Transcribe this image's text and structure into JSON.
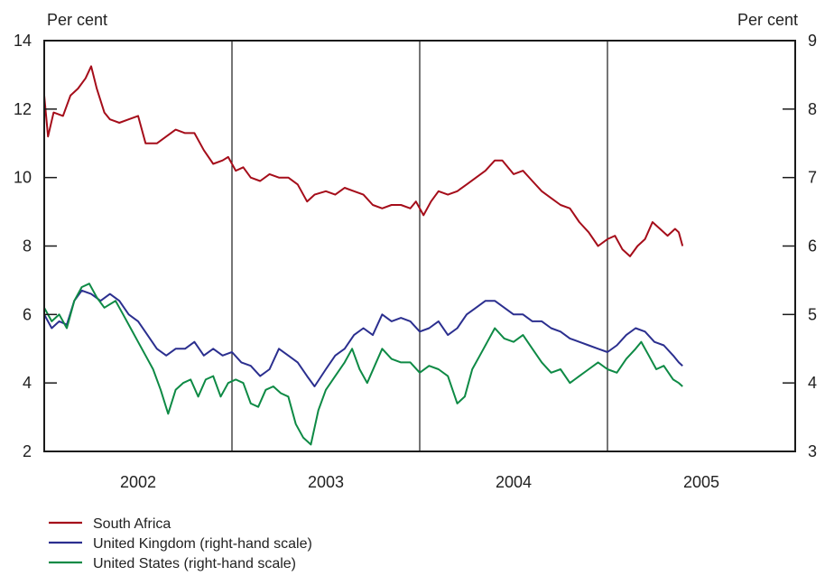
{
  "chart_data": {
    "type": "line",
    "left_unit": "Per cent",
    "right_unit": "Per cent",
    "left_ylim": [
      2,
      14
    ],
    "left_ticks": [
      2,
      4,
      6,
      8,
      10,
      12,
      14
    ],
    "right_ylim": [
      3,
      9
    ],
    "right_ticks": [
      3,
      4,
      5,
      6,
      7,
      8,
      9
    ],
    "xlim": [
      2001.5,
      2005.5
    ],
    "year_dividers": [
      2002.5,
      2003.5,
      2004.5
    ],
    "x_tick_labels": [
      {
        "x": 2002.0,
        "label": "2002"
      },
      {
        "x": 2003.0,
        "label": "2003"
      },
      {
        "x": 2004.0,
        "label": "2004"
      },
      {
        "x": 2005.0,
        "label": "2005"
      }
    ],
    "grid": false,
    "legend_position": "bottom-left",
    "series": [
      {
        "name": "South Africa",
        "axis": "left",
        "color": "#a50d1a",
        "points": [
          [
            2001.5,
            12.4
          ],
          [
            2001.52,
            11.2
          ],
          [
            2001.55,
            11.9
          ],
          [
            2001.6,
            11.8
          ],
          [
            2001.64,
            12.4
          ],
          [
            2001.68,
            12.6
          ],
          [
            2001.72,
            12.9
          ],
          [
            2001.75,
            13.25
          ],
          [
            2001.78,
            12.6
          ],
          [
            2001.82,
            11.9
          ],
          [
            2001.85,
            11.7
          ],
          [
            2001.9,
            11.6
          ],
          [
            2001.95,
            11.7
          ],
          [
            2002.0,
            11.8
          ],
          [
            2002.04,
            11.0
          ],
          [
            2002.1,
            11.0
          ],
          [
            2002.15,
            11.2
          ],
          [
            2002.2,
            11.4
          ],
          [
            2002.25,
            11.3
          ],
          [
            2002.3,
            11.3
          ],
          [
            2002.35,
            10.8
          ],
          [
            2002.4,
            10.4
          ],
          [
            2002.45,
            10.5
          ],
          [
            2002.48,
            10.6
          ],
          [
            2002.52,
            10.2
          ],
          [
            2002.56,
            10.3
          ],
          [
            2002.6,
            10.0
          ],
          [
            2002.65,
            9.9
          ],
          [
            2002.7,
            10.1
          ],
          [
            2002.75,
            10.0
          ],
          [
            2002.8,
            10.0
          ],
          [
            2002.85,
            9.8
          ],
          [
            2002.9,
            9.3
          ],
          [
            2002.94,
            9.5
          ],
          [
            2003.0,
            9.6
          ],
          [
            2003.05,
            9.5
          ],
          [
            2003.1,
            9.7
          ],
          [
            2003.15,
            9.6
          ],
          [
            2003.2,
            9.5
          ],
          [
            2003.25,
            9.2
          ],
          [
            2003.3,
            9.1
          ],
          [
            2003.35,
            9.2
          ],
          [
            2003.4,
            9.2
          ],
          [
            2003.45,
            9.1
          ],
          [
            2003.48,
            9.3
          ],
          [
            2003.52,
            8.9
          ],
          [
            2003.56,
            9.3
          ],
          [
            2003.6,
            9.6
          ],
          [
            2003.65,
            9.5
          ],
          [
            2003.7,
            9.6
          ],
          [
            2003.75,
            9.8
          ],
          [
            2003.8,
            10.0
          ],
          [
            2003.85,
            10.2
          ],
          [
            2003.9,
            10.5
          ],
          [
            2003.94,
            10.5
          ],
          [
            2004.0,
            10.1
          ],
          [
            2004.05,
            10.2
          ],
          [
            2004.1,
            9.9
          ],
          [
            2004.15,
            9.6
          ],
          [
            2004.2,
            9.4
          ],
          [
            2004.25,
            9.2
          ],
          [
            2004.3,
            9.1
          ],
          [
            2004.35,
            8.7
          ],
          [
            2004.4,
            8.4
          ],
          [
            2004.45,
            8.0
          ],
          [
            2004.5,
            8.2
          ],
          [
            2004.54,
            8.3
          ],
          [
            2004.58,
            7.9
          ],
          [
            2004.62,
            7.7
          ],
          [
            2004.66,
            8.0
          ],
          [
            2004.7,
            8.2
          ],
          [
            2004.74,
            8.7
          ],
          [
            2004.78,
            8.5
          ],
          [
            2004.82,
            8.3
          ],
          [
            2004.86,
            8.5
          ],
          [
            2004.88,
            8.4
          ],
          [
            2004.9,
            8.0
          ]
        ]
      },
      {
        "name": "United Kingdom (right-hand scale)",
        "axis": "right",
        "color": "#2b2f8f",
        "points": [
          [
            2001.5,
            5.0
          ],
          [
            2001.54,
            4.8
          ],
          [
            2001.58,
            4.9
          ],
          [
            2001.62,
            4.85
          ],
          [
            2001.66,
            5.2
          ],
          [
            2001.7,
            5.35
          ],
          [
            2001.75,
            5.3
          ],
          [
            2001.8,
            5.2
          ],
          [
            2001.85,
            5.3
          ],
          [
            2001.9,
            5.2
          ],
          [
            2001.95,
            5.0
          ],
          [
            2002.0,
            4.9
          ],
          [
            2002.05,
            4.7
          ],
          [
            2002.1,
            4.5
          ],
          [
            2002.15,
            4.4
          ],
          [
            2002.2,
            4.5
          ],
          [
            2002.25,
            4.5
          ],
          [
            2002.3,
            4.6
          ],
          [
            2002.35,
            4.4
          ],
          [
            2002.4,
            4.5
          ],
          [
            2002.45,
            4.4
          ],
          [
            2002.5,
            4.45
          ],
          [
            2002.55,
            4.3
          ],
          [
            2002.6,
            4.25
          ],
          [
            2002.65,
            4.1
          ],
          [
            2002.7,
            4.2
          ],
          [
            2002.75,
            4.5
          ],
          [
            2002.8,
            4.4
          ],
          [
            2002.85,
            4.3
          ],
          [
            2002.9,
            4.1
          ],
          [
            2002.94,
            3.95
          ],
          [
            2003.0,
            4.2
          ],
          [
            2003.05,
            4.4
          ],
          [
            2003.1,
            4.5
          ],
          [
            2003.15,
            4.7
          ],
          [
            2003.2,
            4.8
          ],
          [
            2003.25,
            4.7
          ],
          [
            2003.3,
            5.0
          ],
          [
            2003.35,
            4.9
          ],
          [
            2003.4,
            4.95
          ],
          [
            2003.45,
            4.9
          ],
          [
            2003.5,
            4.75
          ],
          [
            2003.55,
            4.8
          ],
          [
            2003.6,
            4.9
          ],
          [
            2003.65,
            4.7
          ],
          [
            2003.7,
            4.8
          ],
          [
            2003.75,
            5.0
          ],
          [
            2003.8,
            5.1
          ],
          [
            2003.85,
            5.2
          ],
          [
            2003.9,
            5.2
          ],
          [
            2004.0,
            5.0
          ],
          [
            2004.05,
            5.0
          ],
          [
            2004.1,
            4.9
          ],
          [
            2004.15,
            4.9
          ],
          [
            2004.2,
            4.8
          ],
          [
            2004.25,
            4.75
          ],
          [
            2004.3,
            4.65
          ],
          [
            2004.35,
            4.6
          ],
          [
            2004.4,
            4.55
          ],
          [
            2004.45,
            4.5
          ],
          [
            2004.5,
            4.45
          ],
          [
            2004.55,
            4.55
          ],
          [
            2004.6,
            4.7
          ],
          [
            2004.65,
            4.8
          ],
          [
            2004.7,
            4.75
          ],
          [
            2004.75,
            4.6
          ],
          [
            2004.8,
            4.55
          ],
          [
            2004.85,
            4.4
          ],
          [
            2004.88,
            4.3
          ],
          [
            2004.9,
            4.25
          ]
        ]
      },
      {
        "name": "United States (right-hand scale)",
        "axis": "right",
        "color": "#0e8a45",
        "points": [
          [
            2001.5,
            5.1
          ],
          [
            2001.54,
            4.9
          ],
          [
            2001.58,
            5.0
          ],
          [
            2001.62,
            4.8
          ],
          [
            2001.66,
            5.2
          ],
          [
            2001.7,
            5.4
          ],
          [
            2001.74,
            5.45
          ],
          [
            2001.78,
            5.25
          ],
          [
            2001.82,
            5.1
          ],
          [
            2001.88,
            5.2
          ],
          [
            2001.92,
            5.0
          ],
          [
            2001.96,
            4.8
          ],
          [
            2002.0,
            4.6
          ],
          [
            2002.04,
            4.4
          ],
          [
            2002.08,
            4.2
          ],
          [
            2002.12,
            3.9
          ],
          [
            2002.16,
            3.55
          ],
          [
            2002.2,
            3.9
          ],
          [
            2002.24,
            4.0
          ],
          [
            2002.28,
            4.05
          ],
          [
            2002.32,
            3.8
          ],
          [
            2002.36,
            4.05
          ],
          [
            2002.4,
            4.1
          ],
          [
            2002.44,
            3.8
          ],
          [
            2002.48,
            4.0
          ],
          [
            2002.52,
            4.05
          ],
          [
            2002.56,
            4.0
          ],
          [
            2002.6,
            3.7
          ],
          [
            2002.64,
            3.65
          ],
          [
            2002.68,
            3.9
          ],
          [
            2002.72,
            3.95
          ],
          [
            2002.76,
            3.85
          ],
          [
            2002.8,
            3.8
          ],
          [
            2002.84,
            3.4
          ],
          [
            2002.88,
            3.2
          ],
          [
            2002.92,
            3.1
          ],
          [
            2002.96,
            3.6
          ],
          [
            2003.0,
            3.9
          ],
          [
            2003.05,
            4.1
          ],
          [
            2003.1,
            4.3
          ],
          [
            2003.14,
            4.5
          ],
          [
            2003.18,
            4.2
          ],
          [
            2003.22,
            4.0
          ],
          [
            2003.26,
            4.25
          ],
          [
            2003.3,
            4.5
          ],
          [
            2003.35,
            4.35
          ],
          [
            2003.4,
            4.3
          ],
          [
            2003.45,
            4.3
          ],
          [
            2003.5,
            4.15
          ],
          [
            2003.55,
            4.25
          ],
          [
            2003.6,
            4.2
          ],
          [
            2003.65,
            4.1
          ],
          [
            2003.7,
            3.7
          ],
          [
            2003.74,
            3.8
          ],
          [
            2003.78,
            4.2
          ],
          [
            2003.82,
            4.4
          ],
          [
            2003.86,
            4.6
          ],
          [
            2003.9,
            4.8
          ],
          [
            2003.95,
            4.65
          ],
          [
            2004.0,
            4.6
          ],
          [
            2004.05,
            4.7
          ],
          [
            2004.1,
            4.5
          ],
          [
            2004.15,
            4.3
          ],
          [
            2004.2,
            4.15
          ],
          [
            2004.25,
            4.2
          ],
          [
            2004.3,
            4.0
          ],
          [
            2004.35,
            4.1
          ],
          [
            2004.4,
            4.2
          ],
          [
            2004.45,
            4.3
          ],
          [
            2004.5,
            4.2
          ],
          [
            2004.55,
            4.15
          ],
          [
            2004.6,
            4.35
          ],
          [
            2004.65,
            4.5
          ],
          [
            2004.68,
            4.6
          ],
          [
            2004.72,
            4.4
          ],
          [
            2004.76,
            4.2
          ],
          [
            2004.8,
            4.25
          ],
          [
            2004.85,
            4.05
          ],
          [
            2004.88,
            4.0
          ],
          [
            2004.9,
            3.95
          ]
        ]
      }
    ]
  }
}
